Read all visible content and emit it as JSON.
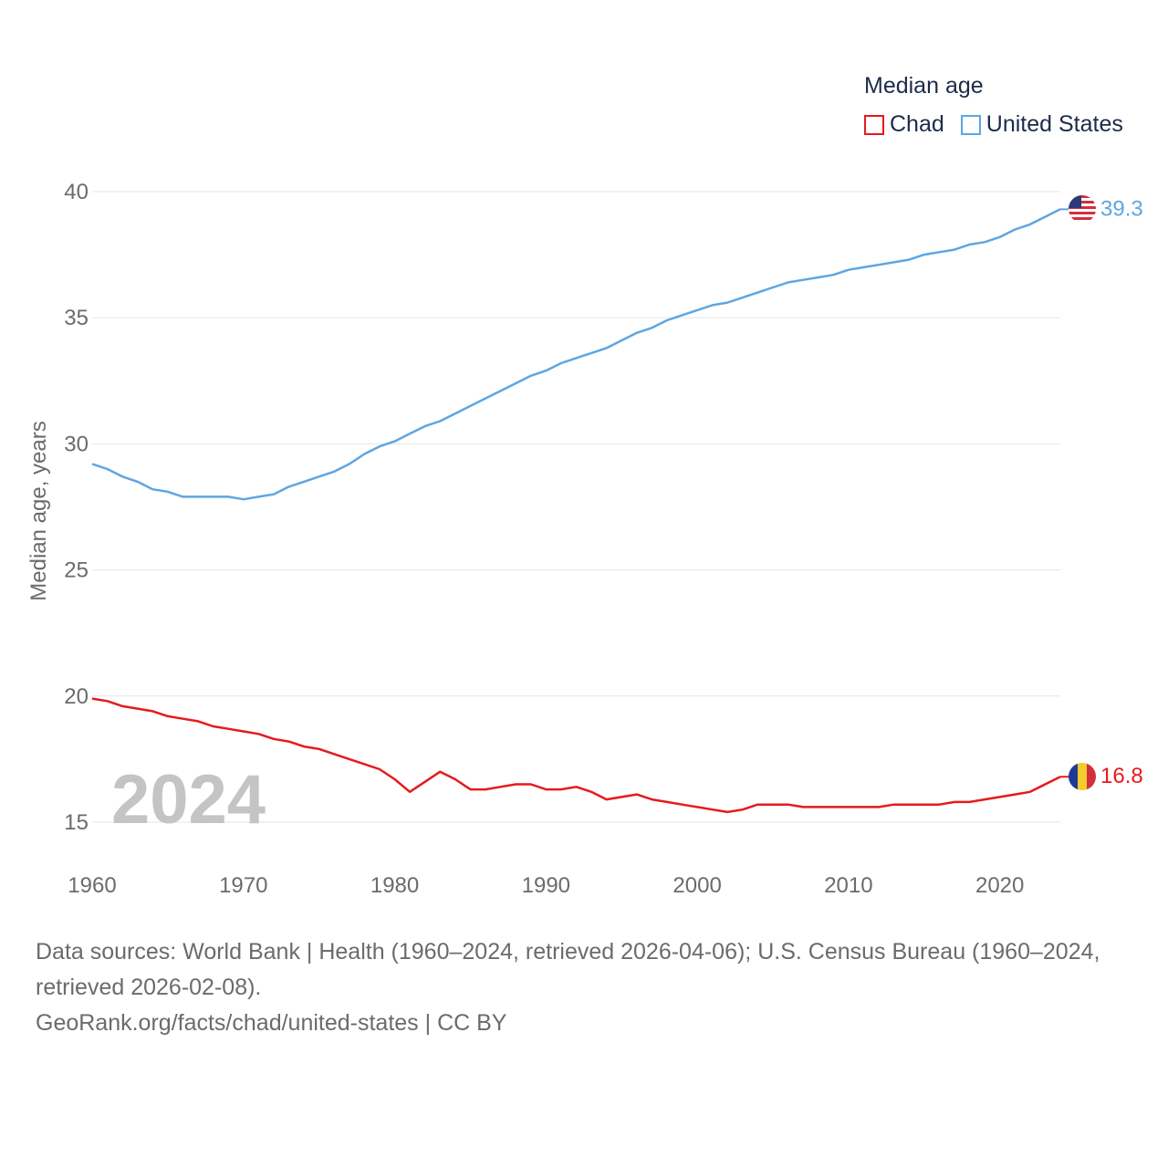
{
  "chart_data": {
    "type": "line",
    "title": "Median age",
    "ylabel": "Median age, years",
    "xlabel": "",
    "xlim": [
      1960,
      2024
    ],
    "ylim": [
      13.5,
      41
    ],
    "yticks": [
      15,
      20,
      25,
      30,
      35,
      40
    ],
    "xticks": [
      1960,
      1970,
      1980,
      1990,
      2000,
      2010,
      2020
    ],
    "year_watermark": "2024",
    "x": [
      1960,
      1961,
      1962,
      1963,
      1964,
      1965,
      1966,
      1967,
      1968,
      1969,
      1970,
      1971,
      1972,
      1973,
      1974,
      1975,
      1976,
      1977,
      1978,
      1979,
      1980,
      1981,
      1982,
      1983,
      1984,
      1985,
      1986,
      1987,
      1988,
      1989,
      1990,
      1991,
      1992,
      1993,
      1994,
      1995,
      1996,
      1997,
      1998,
      1999,
      2000,
      2001,
      2002,
      2003,
      2004,
      2005,
      2006,
      2007,
      2008,
      2009,
      2010,
      2011,
      2012,
      2013,
      2014,
      2015,
      2016,
      2017,
      2018,
      2019,
      2020,
      2021,
      2022,
      2023,
      2024
    ],
    "series": [
      {
        "name": "Chad",
        "color": "#e8191b",
        "end_label": "16.8",
        "values": [
          19.9,
          19.8,
          19.6,
          19.5,
          19.4,
          19.2,
          19.1,
          19.0,
          18.8,
          18.7,
          18.6,
          18.5,
          18.3,
          18.2,
          18.0,
          17.9,
          17.7,
          17.5,
          17.3,
          17.1,
          16.7,
          16.2,
          16.6,
          17.0,
          16.7,
          16.3,
          16.3,
          16.4,
          16.5,
          16.5,
          16.3,
          16.3,
          16.4,
          16.2,
          15.9,
          16.0,
          16.1,
          15.9,
          15.8,
          15.7,
          15.6,
          15.5,
          15.4,
          15.5,
          15.7,
          15.7,
          15.7,
          15.6,
          15.6,
          15.6,
          15.6,
          15.6,
          15.6,
          15.7,
          15.7,
          15.7,
          15.7,
          15.8,
          15.8,
          15.9,
          16.0,
          16.1,
          16.2,
          16.5,
          16.8
        ]
      },
      {
        "name": "United States",
        "color": "#5ea6e2",
        "end_label": "39.3",
        "values": [
          29.2,
          29.0,
          28.7,
          28.5,
          28.2,
          28.1,
          27.9,
          27.9,
          27.9,
          27.9,
          27.8,
          27.9,
          28.0,
          28.3,
          28.5,
          28.7,
          28.9,
          29.2,
          29.6,
          29.9,
          30.1,
          30.4,
          30.7,
          30.9,
          31.2,
          31.5,
          31.8,
          32.1,
          32.4,
          32.7,
          32.9,
          33.2,
          33.4,
          33.6,
          33.8,
          34.1,
          34.4,
          34.6,
          34.9,
          35.1,
          35.3,
          35.5,
          35.6,
          35.8,
          36.0,
          36.2,
          36.4,
          36.5,
          36.6,
          36.7,
          36.9,
          37.0,
          37.1,
          37.2,
          37.3,
          37.5,
          37.6,
          37.7,
          37.9,
          38.0,
          38.2,
          38.5,
          38.7,
          39.0,
          39.3
        ]
      }
    ]
  },
  "footer": {
    "sources": "Data sources: World Bank | Health (1960–2024, retrieved 2026-04-06); U.S. Census Bureau (1960–2024, retrieved 2026-02-08).",
    "credit": "GeoRank.org/facts/chad/united-states | CC BY"
  }
}
